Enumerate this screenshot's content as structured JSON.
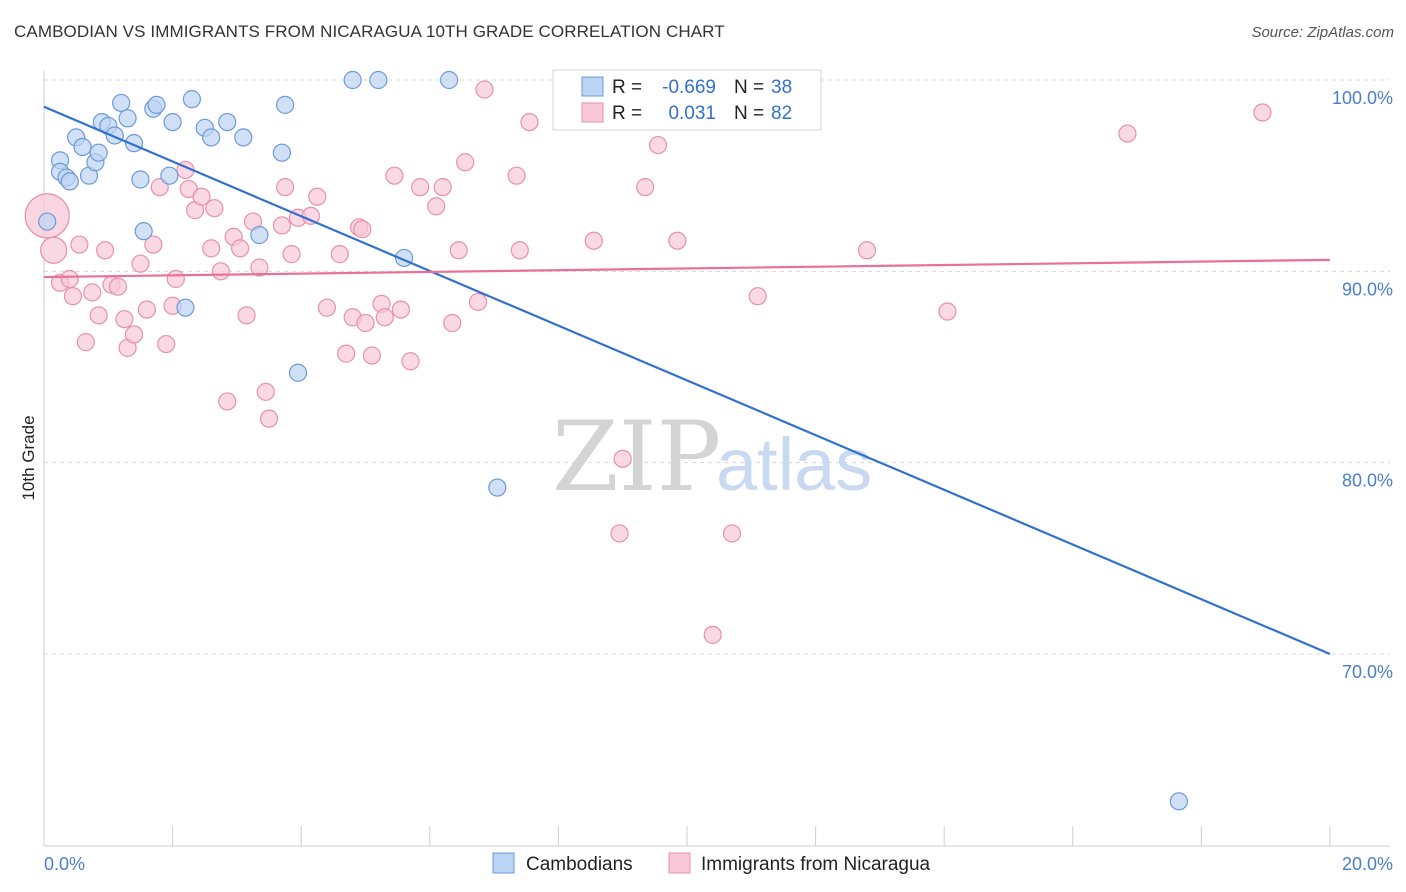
{
  "title": "CAMBODIAN VS IMMIGRANTS FROM NICARAGUA 10TH GRADE CORRELATION CHART",
  "source": "Source: ZipAtlas.com",
  "watermark": {
    "zip": "ZIP",
    "atlas": "atlas"
  },
  "stats": {
    "r_label": "R =",
    "n_label": "N =",
    "cambodians": {
      "r": "-0.669",
      "n": "38"
    },
    "nicaragua": {
      "r": "0.031",
      "n": "82"
    }
  },
  "colors": {
    "blue_fill": "#bcd4f4",
    "blue_stroke": "#6c9ad8",
    "blue_line": "#3070d0",
    "pink_fill": "#f8c8d8",
    "pink_stroke": "#e890ac",
    "pink_line": "#e8709a",
    "tick_text": "#4a7fcf",
    "grid": "#d8d8d8"
  },
  "chart_data": {
    "type": "scatter",
    "title": "CAMBODIAN VS IMMIGRANTS FROM NICARAGUA 10TH GRADE CORRELATION CHART",
    "xlabel": "",
    "ylabel": "10th Grade",
    "xlim": [
      0,
      20
    ],
    "ylim": [
      61,
      101.5
    ],
    "x_tick_labels": [
      "0.0%",
      "20.0%"
    ],
    "y_ticks": [
      70,
      80,
      90,
      100
    ],
    "y_tick_labels": [
      "70.0%",
      "80.0%",
      "90.0%",
      "100.0%"
    ],
    "grid": "horizontal dashed",
    "legend_position": "bottom-center",
    "series": [
      {
        "name": "Cambodians",
        "color": "#6c9ad8",
        "trend": {
          "x": [
            0,
            20
          ],
          "y": [
            98.6,
            70.0
          ]
        },
        "points": [
          [
            0.05,
            92.6
          ],
          [
            0.25,
            95.8
          ],
          [
            0.25,
            95.2
          ],
          [
            0.35,
            94.9
          ],
          [
            0.4,
            94.7
          ],
          [
            0.5,
            97.0
          ],
          [
            0.6,
            96.5
          ],
          [
            0.7,
            95.0
          ],
          [
            0.8,
            95.7
          ],
          [
            0.85,
            96.2
          ],
          [
            0.9,
            97.8
          ],
          [
            1.0,
            97.6
          ],
          [
            1.1,
            97.1
          ],
          [
            1.2,
            98.8
          ],
          [
            1.3,
            98.0
          ],
          [
            1.4,
            96.7
          ],
          [
            1.5,
            94.8
          ],
          [
            1.55,
            92.1
          ],
          [
            1.7,
            98.5
          ],
          [
            1.75,
            98.7
          ],
          [
            1.95,
            95.0
          ],
          [
            2.0,
            97.8
          ],
          [
            2.2,
            88.1
          ],
          [
            2.3,
            99.0
          ],
          [
            2.5,
            97.5
          ],
          [
            2.6,
            97.0
          ],
          [
            2.85,
            97.8
          ],
          [
            3.1,
            97.0
          ],
          [
            3.35,
            91.9
          ],
          [
            3.7,
            96.2
          ],
          [
            3.75,
            98.7
          ],
          [
            3.95,
            84.7
          ],
          [
            4.8,
            100.0
          ],
          [
            5.2,
            100.0
          ],
          [
            6.3,
            100.0
          ],
          [
            7.05,
            78.7
          ],
          [
            17.65,
            62.3
          ],
          [
            5.6,
            90.7
          ]
        ]
      },
      {
        "name": "Immigrants from Nicaragua",
        "color": "#e890ac",
        "trend": {
          "x": [
            0,
            20
          ],
          "y": [
            89.7,
            90.6
          ]
        },
        "points": [
          [
            0.05,
            92.9
          ],
          [
            0.15,
            91.1
          ],
          [
            0.25,
            89.4
          ],
          [
            0.4,
            89.6
          ],
          [
            0.45,
            88.7
          ],
          [
            0.55,
            91.4
          ],
          [
            0.65,
            86.3
          ],
          [
            0.75,
            88.9
          ],
          [
            0.85,
            87.7
          ],
          [
            0.95,
            91.1
          ],
          [
            1.05,
            89.3
          ],
          [
            1.15,
            89.2
          ],
          [
            1.25,
            87.5
          ],
          [
            1.3,
            86.0
          ],
          [
            1.4,
            86.7
          ],
          [
            1.5,
            90.4
          ],
          [
            1.6,
            88.0
          ],
          [
            1.7,
            91.4
          ],
          [
            1.8,
            94.4
          ],
          [
            1.9,
            86.2
          ],
          [
            2.0,
            88.2
          ],
          [
            2.05,
            89.6
          ],
          [
            2.2,
            95.3
          ],
          [
            2.25,
            94.3
          ],
          [
            2.35,
            93.2
          ],
          [
            2.45,
            93.9
          ],
          [
            2.6,
            91.2
          ],
          [
            2.65,
            93.3
          ],
          [
            2.75,
            90.0
          ],
          [
            2.85,
            83.2
          ],
          [
            2.95,
            91.8
          ],
          [
            3.05,
            91.2
          ],
          [
            3.15,
            87.7
          ],
          [
            3.25,
            92.6
          ],
          [
            3.35,
            90.2
          ],
          [
            3.45,
            83.7
          ],
          [
            3.5,
            82.3
          ],
          [
            3.7,
            92.4
          ],
          [
            3.75,
            94.4
          ],
          [
            3.85,
            90.9
          ],
          [
            3.95,
            92.8
          ],
          [
            4.15,
            92.9
          ],
          [
            4.25,
            93.9
          ],
          [
            4.4,
            88.1
          ],
          [
            4.6,
            90.9
          ],
          [
            4.7,
            85.7
          ],
          [
            4.8,
            87.6
          ],
          [
            4.9,
            92.3
          ],
          [
            4.95,
            92.2
          ],
          [
            5.0,
            87.3
          ],
          [
            5.1,
            85.6
          ],
          [
            5.25,
            88.3
          ],
          [
            5.3,
            87.6
          ],
          [
            5.45,
            95.0
          ],
          [
            5.55,
            88.0
          ],
          [
            5.7,
            85.3
          ],
          [
            5.85,
            94.4
          ],
          [
            6.1,
            93.4
          ],
          [
            6.2,
            94.4
          ],
          [
            6.35,
            87.3
          ],
          [
            6.45,
            91.1
          ],
          [
            6.55,
            95.7
          ],
          [
            6.75,
            88.4
          ],
          [
            6.85,
            99.5
          ],
          [
            7.35,
            95.0
          ],
          [
            7.4,
            91.1
          ],
          [
            7.55,
            97.8
          ],
          [
            8.05,
            100.0
          ],
          [
            8.45,
            98.0
          ],
          [
            8.55,
            91.6
          ],
          [
            8.95,
            76.3
          ],
          [
            9.0,
            80.2
          ],
          [
            9.35,
            94.4
          ],
          [
            9.55,
            96.6
          ],
          [
            9.85,
            91.6
          ],
          [
            10.4,
            71.0
          ],
          [
            10.7,
            76.3
          ],
          [
            11.1,
            88.7
          ],
          [
            12.8,
            91.1
          ],
          [
            14.05,
            87.9
          ],
          [
            16.85,
            97.2
          ],
          [
            18.95,
            98.3
          ]
        ]
      }
    ]
  },
  "legend": {
    "items": [
      "Cambodians",
      "Immigrants from Nicaragua"
    ]
  }
}
